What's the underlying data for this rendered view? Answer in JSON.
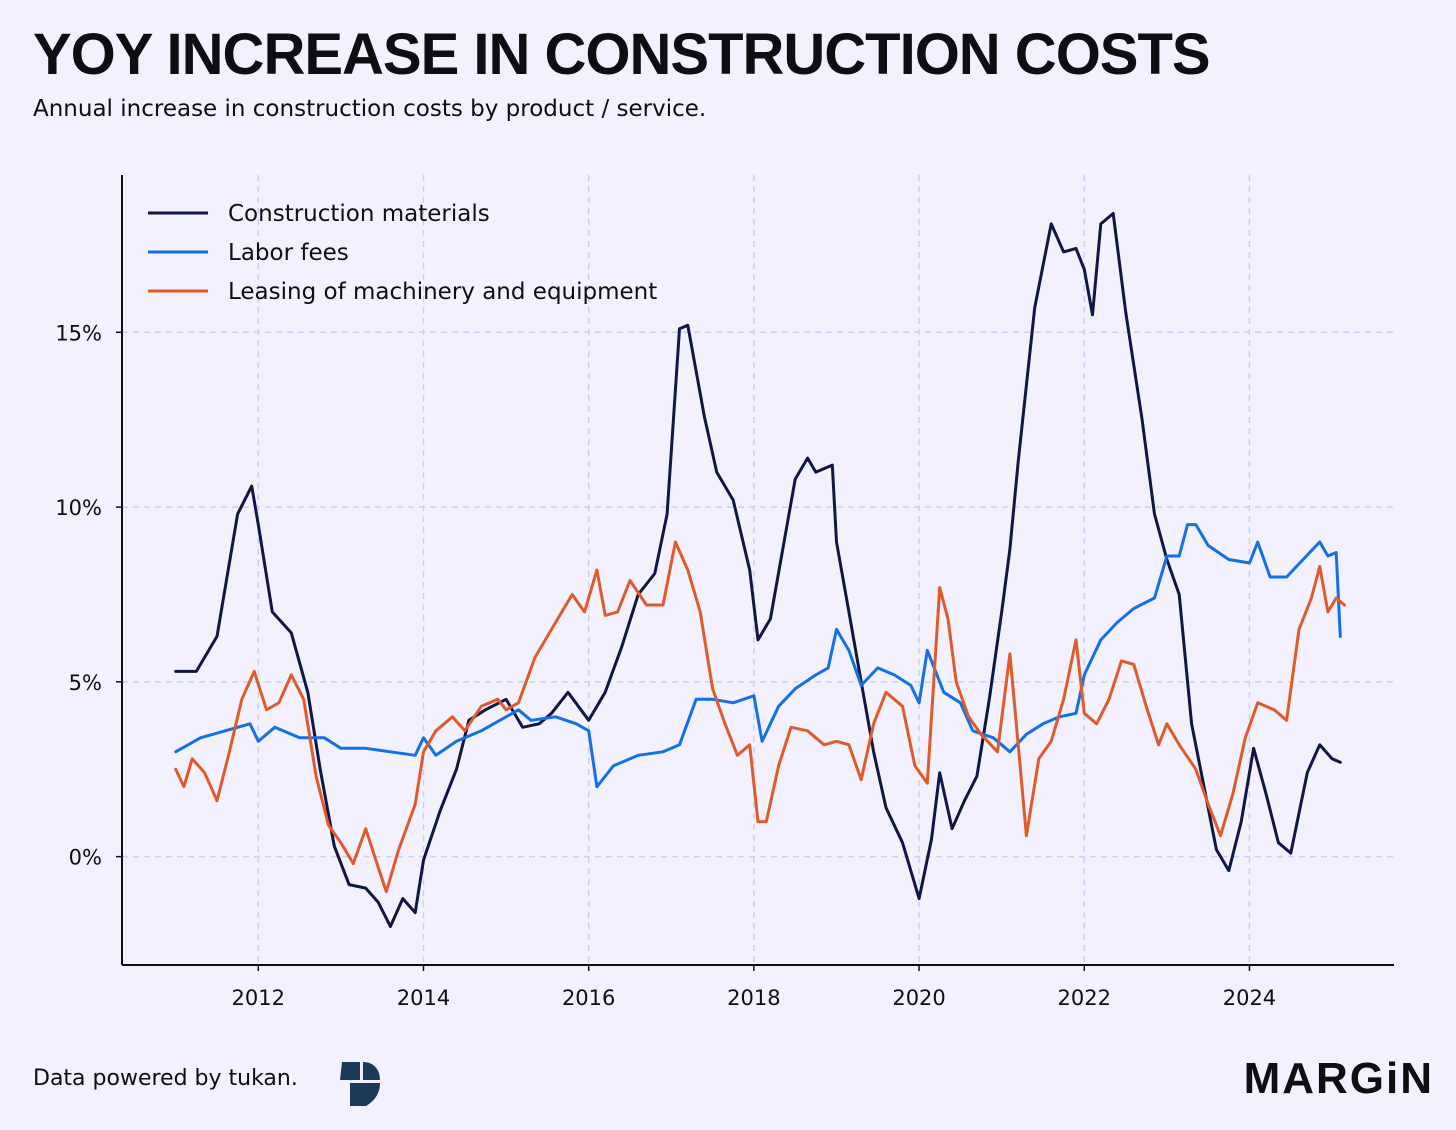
{
  "header": {
    "title": "YOY INCREASE IN CONSTRUCTION COSTS",
    "subtitle": "Annual increase in construction costs by product / service."
  },
  "footer": {
    "source": "Data powered by tukan.",
    "brand": "MARGiN"
  },
  "colors": {
    "background": "#F2F1FD",
    "grid": "#C9D2F2",
    "materials": "#101645",
    "labor": "#1570E6",
    "leasing": "#E05A2B"
  },
  "chart_data": {
    "type": "line",
    "title": "YOY INCREASE IN CONSTRUCTION COSTS",
    "subtitle": "Annual increase in construction costs by product / service.",
    "xlabel": "",
    "ylabel": "",
    "x_ticks": [
      "2012",
      "2014",
      "2016",
      "2018",
      "2020",
      "2022",
      "2024"
    ],
    "y_ticks": [
      "0%",
      "5%",
      "10%",
      "15%"
    ],
    "xlim": [
      2010.35,
      2025.75
    ],
    "ylim": [
      -3.1,
      19.5
    ],
    "grid": true,
    "legend_position": "top-left",
    "series": [
      {
        "name": "Construction materials",
        "color": "#101645",
        "points": [
          [
            2011.0,
            5.3
          ],
          [
            2011.25,
            5.3
          ],
          [
            2011.5,
            6.3
          ],
          [
            2011.75,
            9.8
          ],
          [
            2011.92,
            10.6
          ],
          [
            2012.0,
            9.5
          ],
          [
            2012.17,
            7.0
          ],
          [
            2012.4,
            6.4
          ],
          [
            2012.6,
            4.7
          ],
          [
            2012.75,
            2.5
          ],
          [
            2012.92,
            0.3
          ],
          [
            2013.1,
            -0.8
          ],
          [
            2013.3,
            -0.9
          ],
          [
            2013.45,
            -1.3
          ],
          [
            2013.6,
            -2.0
          ],
          [
            2013.75,
            -1.2
          ],
          [
            2013.9,
            -1.6
          ],
          [
            2014.0,
            -0.1
          ],
          [
            2014.2,
            1.3
          ],
          [
            2014.4,
            2.5
          ],
          [
            2014.55,
            3.9
          ],
          [
            2014.75,
            4.2
          ],
          [
            2015.0,
            4.5
          ],
          [
            2015.2,
            3.7
          ],
          [
            2015.4,
            3.8
          ],
          [
            2015.55,
            4.1
          ],
          [
            2015.75,
            4.7
          ],
          [
            2016.0,
            3.9
          ],
          [
            2016.2,
            4.7
          ],
          [
            2016.4,
            6.0
          ],
          [
            2016.6,
            7.5
          ],
          [
            2016.8,
            8.1
          ],
          [
            2016.95,
            9.8
          ],
          [
            2017.1,
            15.1
          ],
          [
            2017.2,
            15.2
          ],
          [
            2017.4,
            12.6
          ],
          [
            2017.55,
            11.0
          ],
          [
            2017.75,
            10.2
          ],
          [
            2017.95,
            8.2
          ],
          [
            2018.05,
            6.2
          ],
          [
            2018.2,
            6.8
          ],
          [
            2018.35,
            8.8
          ],
          [
            2018.5,
            10.8
          ],
          [
            2018.65,
            11.4
          ],
          [
            2018.75,
            11.0
          ],
          [
            2018.95,
            11.2
          ],
          [
            2019.0,
            9.0
          ],
          [
            2019.15,
            7.0
          ],
          [
            2019.3,
            5.0
          ],
          [
            2019.45,
            3.0
          ],
          [
            2019.6,
            1.4
          ],
          [
            2019.8,
            0.4
          ],
          [
            2020.0,
            -1.2
          ],
          [
            2020.15,
            0.5
          ],
          [
            2020.25,
            2.4
          ],
          [
            2020.4,
            0.8
          ],
          [
            2020.55,
            1.6
          ],
          [
            2020.7,
            2.3
          ],
          [
            2020.85,
            4.5
          ],
          [
            2021.0,
            7.0
          ],
          [
            2021.1,
            8.8
          ],
          [
            2021.2,
            11.3
          ],
          [
            2021.4,
            15.7
          ],
          [
            2021.6,
            18.1
          ],
          [
            2021.75,
            17.3
          ],
          [
            2021.9,
            17.4
          ],
          [
            2022.0,
            16.8
          ],
          [
            2022.1,
            15.5
          ],
          [
            2022.2,
            18.1
          ],
          [
            2022.35,
            18.4
          ],
          [
            2022.5,
            15.6
          ],
          [
            2022.7,
            12.5
          ],
          [
            2022.85,
            9.8
          ],
          [
            2023.0,
            8.5
          ],
          [
            2023.15,
            7.5
          ],
          [
            2023.3,
            3.8
          ],
          [
            2023.45,
            2.0
          ],
          [
            2023.6,
            0.2
          ],
          [
            2023.75,
            -0.4
          ],
          [
            2023.9,
            1.0
          ],
          [
            2024.05,
            3.1
          ],
          [
            2024.2,
            1.8
          ],
          [
            2024.35,
            0.4
          ],
          [
            2024.5,
            0.1
          ],
          [
            2024.7,
            2.4
          ],
          [
            2024.85,
            3.2
          ],
          [
            2025.0,
            2.8
          ],
          [
            2025.1,
            2.7
          ]
        ]
      },
      {
        "name": "Labor fees",
        "color": "#1570E6",
        "points": [
          [
            2011.0,
            3.0
          ],
          [
            2011.3,
            3.4
          ],
          [
            2011.6,
            3.6
          ],
          [
            2011.9,
            3.8
          ],
          [
            2012.0,
            3.3
          ],
          [
            2012.2,
            3.7
          ],
          [
            2012.5,
            3.4
          ],
          [
            2012.8,
            3.4
          ],
          [
            2013.0,
            3.1
          ],
          [
            2013.3,
            3.1
          ],
          [
            2013.6,
            3.0
          ],
          [
            2013.9,
            2.9
          ],
          [
            2014.0,
            3.4
          ],
          [
            2014.15,
            2.9
          ],
          [
            2014.4,
            3.3
          ],
          [
            2014.7,
            3.6
          ],
          [
            2015.0,
            4.0
          ],
          [
            2015.15,
            4.2
          ],
          [
            2015.3,
            3.9
          ],
          [
            2015.6,
            4.0
          ],
          [
            2015.85,
            3.8
          ],
          [
            2016.0,
            3.6
          ],
          [
            2016.1,
            2.0
          ],
          [
            2016.3,
            2.6
          ],
          [
            2016.6,
            2.9
          ],
          [
            2016.9,
            3.0
          ],
          [
            2017.1,
            3.2
          ],
          [
            2017.3,
            4.5
          ],
          [
            2017.5,
            4.5
          ],
          [
            2017.75,
            4.4
          ],
          [
            2018.0,
            4.6
          ],
          [
            2018.1,
            3.3
          ],
          [
            2018.3,
            4.3
          ],
          [
            2018.5,
            4.8
          ],
          [
            2018.75,
            5.2
          ],
          [
            2018.9,
            5.4
          ],
          [
            2019.0,
            6.5
          ],
          [
            2019.15,
            5.9
          ],
          [
            2019.3,
            4.9
          ],
          [
            2019.5,
            5.4
          ],
          [
            2019.7,
            5.2
          ],
          [
            2019.9,
            4.9
          ],
          [
            2020.0,
            4.4
          ],
          [
            2020.1,
            5.9
          ],
          [
            2020.3,
            4.7
          ],
          [
            2020.5,
            4.4
          ],
          [
            2020.65,
            3.6
          ],
          [
            2020.9,
            3.4
          ],
          [
            2021.1,
            3.0
          ],
          [
            2021.3,
            3.5
          ],
          [
            2021.5,
            3.8
          ],
          [
            2021.7,
            4.0
          ],
          [
            2021.9,
            4.1
          ],
          [
            2022.0,
            5.2
          ],
          [
            2022.2,
            6.2
          ],
          [
            2022.4,
            6.7
          ],
          [
            2022.6,
            7.1
          ],
          [
            2022.85,
            7.4
          ],
          [
            2023.0,
            8.6
          ],
          [
            2023.15,
            8.6
          ],
          [
            2023.25,
            9.5
          ],
          [
            2023.35,
            9.5
          ],
          [
            2023.5,
            8.9
          ],
          [
            2023.75,
            8.5
          ],
          [
            2024.0,
            8.4
          ],
          [
            2024.1,
            9.0
          ],
          [
            2024.25,
            8.0
          ],
          [
            2024.45,
            8.0
          ],
          [
            2024.65,
            8.5
          ],
          [
            2024.85,
            9.0
          ],
          [
            2024.95,
            8.6
          ],
          [
            2025.05,
            8.7
          ],
          [
            2025.1,
            6.3
          ]
        ]
      },
      {
        "name": "Leasing of machinery and equipment",
        "color": "#E05A2B",
        "points": [
          [
            2011.0,
            2.5
          ],
          [
            2011.1,
            2.0
          ],
          [
            2011.2,
            2.8
          ],
          [
            2011.35,
            2.4
          ],
          [
            2011.5,
            1.6
          ],
          [
            2011.65,
            3.0
          ],
          [
            2011.8,
            4.5
          ],
          [
            2011.95,
            5.3
          ],
          [
            2012.1,
            4.2
          ],
          [
            2012.25,
            4.4
          ],
          [
            2012.4,
            5.2
          ],
          [
            2012.55,
            4.5
          ],
          [
            2012.7,
            2.3
          ],
          [
            2012.85,
            0.9
          ],
          [
            2013.0,
            0.4
          ],
          [
            2013.15,
            -0.2
          ],
          [
            2013.3,
            0.8
          ],
          [
            2013.45,
            -0.3
          ],
          [
            2013.55,
            -1.0
          ],
          [
            2013.7,
            0.2
          ],
          [
            2013.9,
            1.5
          ],
          [
            2014.0,
            3.0
          ],
          [
            2014.15,
            3.6
          ],
          [
            2014.35,
            4.0
          ],
          [
            2014.5,
            3.6
          ],
          [
            2014.7,
            4.3
          ],
          [
            2014.9,
            4.5
          ],
          [
            2015.0,
            4.2
          ],
          [
            2015.15,
            4.4
          ],
          [
            2015.35,
            5.7
          ],
          [
            2015.6,
            6.7
          ],
          [
            2015.8,
            7.5
          ],
          [
            2015.95,
            7.0
          ],
          [
            2016.1,
            8.2
          ],
          [
            2016.2,
            6.9
          ],
          [
            2016.35,
            7.0
          ],
          [
            2016.5,
            7.9
          ],
          [
            2016.7,
            7.2
          ],
          [
            2016.9,
            7.2
          ],
          [
            2017.05,
            9.0
          ],
          [
            2017.2,
            8.2
          ],
          [
            2017.35,
            7.0
          ],
          [
            2017.5,
            4.8
          ],
          [
            2017.65,
            3.8
          ],
          [
            2017.8,
            2.9
          ],
          [
            2017.95,
            3.2
          ],
          [
            2018.05,
            1.0
          ],
          [
            2018.15,
            1.0
          ],
          [
            2018.3,
            2.6
          ],
          [
            2018.45,
            3.7
          ],
          [
            2018.65,
            3.6
          ],
          [
            2018.85,
            3.2
          ],
          [
            2019.0,
            3.3
          ],
          [
            2019.15,
            3.2
          ],
          [
            2019.3,
            2.2
          ],
          [
            2019.45,
            3.8
          ],
          [
            2019.6,
            4.7
          ],
          [
            2019.8,
            4.3
          ],
          [
            2019.95,
            2.6
          ],
          [
            2020.1,
            2.1
          ],
          [
            2020.25,
            7.7
          ],
          [
            2020.35,
            6.8
          ],
          [
            2020.45,
            5.0
          ],
          [
            2020.6,
            4.0
          ],
          [
            2020.75,
            3.5
          ],
          [
            2020.95,
            3.0
          ],
          [
            2021.1,
            5.8
          ],
          [
            2021.2,
            3.2
          ],
          [
            2021.3,
            0.6
          ],
          [
            2021.45,
            2.8
          ],
          [
            2021.6,
            3.3
          ],
          [
            2021.75,
            4.5
          ],
          [
            2021.9,
            6.2
          ],
          [
            2022.0,
            4.1
          ],
          [
            2022.15,
            3.8
          ],
          [
            2022.3,
            4.5
          ],
          [
            2022.45,
            5.6
          ],
          [
            2022.6,
            5.5
          ],
          [
            2022.75,
            4.3
          ],
          [
            2022.9,
            3.2
          ],
          [
            2023.0,
            3.8
          ],
          [
            2023.15,
            3.2
          ],
          [
            2023.35,
            2.5
          ],
          [
            2023.5,
            1.5
          ],
          [
            2023.65,
            0.6
          ],
          [
            2023.8,
            1.8
          ],
          [
            2023.95,
            3.4
          ],
          [
            2024.1,
            4.4
          ],
          [
            2024.3,
            4.2
          ],
          [
            2024.45,
            3.9
          ],
          [
            2024.6,
            6.5
          ],
          [
            2024.75,
            7.4
          ],
          [
            2024.85,
            8.3
          ],
          [
            2024.95,
            7.0
          ],
          [
            2025.05,
            7.4
          ],
          [
            2025.15,
            7.2
          ]
        ]
      }
    ]
  }
}
